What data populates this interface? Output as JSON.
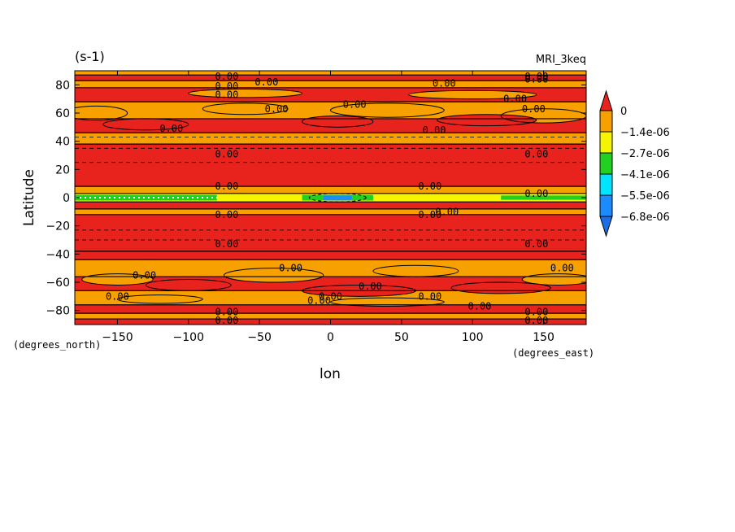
{
  "chart_data": {
    "type": "heatmap",
    "title_left": "(s-1)",
    "title_right": "MRI_3keq",
    "xlabel": "lon",
    "ylabel": "Latitude",
    "x_units": "(degrees_east)",
    "y_units": "(degrees_north)",
    "xlim": [
      -180,
      180
    ],
    "ylim": [
      -90,
      90
    ],
    "x_ticks": [
      -150,
      -100,
      -50,
      0,
      50,
      100,
      150
    ],
    "x_tick_labels": [
      "−150",
      "−100",
      "−50",
      "0",
      "50",
      "100",
      "150"
    ],
    "y_ticks": [
      -80,
      -60,
      -40,
      -20,
      0,
      20,
      40,
      60,
      80
    ],
    "y_tick_labels": [
      "−80",
      "−60",
      "−40",
      "−20",
      "0",
      "20",
      "40",
      "60",
      "80"
    ],
    "colorbar": {
      "labels": [
        "0",
        "−1.4e-06",
        "−2.7e-06",
        "−4.1e-06",
        "−5.5e-06",
        "−6.8e-06"
      ],
      "colors": [
        "#e8221c",
        "#f7a100",
        "#f5f500",
        "#22d022",
        "#00e5ff",
        "#1a8cff",
        "#1a6ee6"
      ]
    },
    "bands": [
      {
        "lat": [
          -90,
          -86
        ],
        "level": 0
      },
      {
        "lat": [
          -86,
          -82
        ],
        "level": 1
      },
      {
        "lat": [
          -82,
          -76
        ],
        "level": 0
      },
      {
        "lat": [
          -76,
          -66
        ],
        "level": 1
      },
      {
        "lat": [
          -66,
          -56
        ],
        "level": 0
      },
      {
        "lat": [
          -56,
          -44
        ],
        "level": 1
      },
      {
        "lat": [
          -44,
          -38
        ],
        "level": 0
      },
      {
        "lat": [
          -38,
          -12
        ],
        "level": 0
      },
      {
        "lat": [
          -12,
          -8
        ],
        "level": 1
      },
      {
        "lat": [
          -8,
          -3
        ],
        "level": 0
      },
      {
        "lat": [
          -3,
          3
        ],
        "level": 2
      },
      {
        "lat": [
          3,
          8
        ],
        "level": 1
      },
      {
        "lat": [
          8,
          38
        ],
        "level": 0
      },
      {
        "lat": [
          38,
          46
        ],
        "level": 1
      },
      {
        "lat": [
          46,
          56
        ],
        "level": 0
      },
      {
        "lat": [
          56,
          68
        ],
        "level": 1
      },
      {
        "lat": [
          68,
          78
        ],
        "level": 0
      },
      {
        "lat": [
          78,
          83
        ],
        "level": 1
      },
      {
        "lat": [
          83,
          87
        ],
        "level": 0
      },
      {
        "lat": [
          87,
          90
        ],
        "level": 1
      }
    ],
    "equatorial_patches": [
      {
        "lon": [
          -180,
          -80
        ],
        "lat": [
          -2,
          2
        ],
        "level": 3
      },
      {
        "lon": [
          -20,
          30
        ],
        "lat": [
          -2,
          2
        ],
        "level": 3
      },
      {
        "lon": [
          -5,
          15
        ],
        "lat": [
          -2,
          1.5
        ],
        "level": 5
      },
      {
        "lon": [
          120,
          180
        ],
        "lat": [
          -1.5,
          1.5
        ],
        "level": 3
      }
    ],
    "contour_labels": [
      {
        "text": "0.00",
        "lon": -73,
        "lat": 86
      },
      {
        "text": "0.00",
        "lon": -73,
        "lat": 79
      },
      {
        "text": "0.00",
        "lon": -73,
        "lat": 73
      },
      {
        "text": "0.00",
        "lon": -45,
        "lat": 82
      },
      {
        "text": "0.00",
        "lon": 80,
        "lat": 81
      },
      {
        "text": "0.00",
        "lon": 145,
        "lat": 86
      },
      {
        "text": "0.00",
        "lon": 145,
        "lat": 84
      },
      {
        "text": "0.00",
        "lon": -38,
        "lat": 63
      },
      {
        "text": "0.00",
        "lon": 17,
        "lat": 66
      },
      {
        "text": "0.00",
        "lon": 130,
        "lat": 70
      },
      {
        "text": "0.00",
        "lon": 143,
        "lat": 63
      },
      {
        "text": "0.00",
        "lon": -112,
        "lat": 49
      },
      {
        "text": "0.00",
        "lon": 73,
        "lat": 48
      },
      {
        "text": "0.00",
        "lon": -73,
        "lat": 31
      },
      {
        "text": "0.00",
        "lon": 145,
        "lat": 31
      },
      {
        "text": "0.00",
        "lon": -73,
        "lat": 8
      },
      {
        "text": "0.00",
        "lon": 70,
        "lat": 8
      },
      {
        "text": "0.00",
        "lon": 145,
        "lat": 3
      },
      {
        "text": "0.00",
        "lon": -73,
        "lat": -12
      },
      {
        "text": "0.00",
        "lon": 70,
        "lat": -12
      },
      {
        "text": "0.00",
        "lon": 82,
        "lat": -10
      },
      {
        "text": "0.00",
        "lon": -73,
        "lat": -33
      },
      {
        "text": "0.00",
        "lon": 145,
        "lat": -33
      },
      {
        "text": "0.00",
        "lon": -28,
        "lat": -50
      },
      {
        "text": "0.00",
        "lon": 163,
        "lat": -50
      },
      {
        "text": "0.00",
        "lon": -131,
        "lat": -55
      },
      {
        "text": "0.00",
        "lon": 28,
        "lat": -63
      },
      {
        "text": "0.00",
        "lon": -150,
        "lat": -70
      },
      {
        "text": "0.00",
        "lon": 0,
        "lat": -70
      },
      {
        "text": "0.00",
        "lon": 70,
        "lat": -70
      },
      {
        "text": "0.00",
        "lon": -8,
        "lat": -73
      },
      {
        "text": "0.00",
        "lon": 105,
        "lat": -77
      },
      {
        "text": "0.00",
        "lon": -73,
        "lat": -81
      },
      {
        "text": "0.00",
        "lon": -73,
        "lat": -87
      },
      {
        "text": "0.00",
        "lon": 145,
        "lat": -81
      },
      {
        "text": "0.00",
        "lon": 145,
        "lat": -87
      }
    ]
  }
}
